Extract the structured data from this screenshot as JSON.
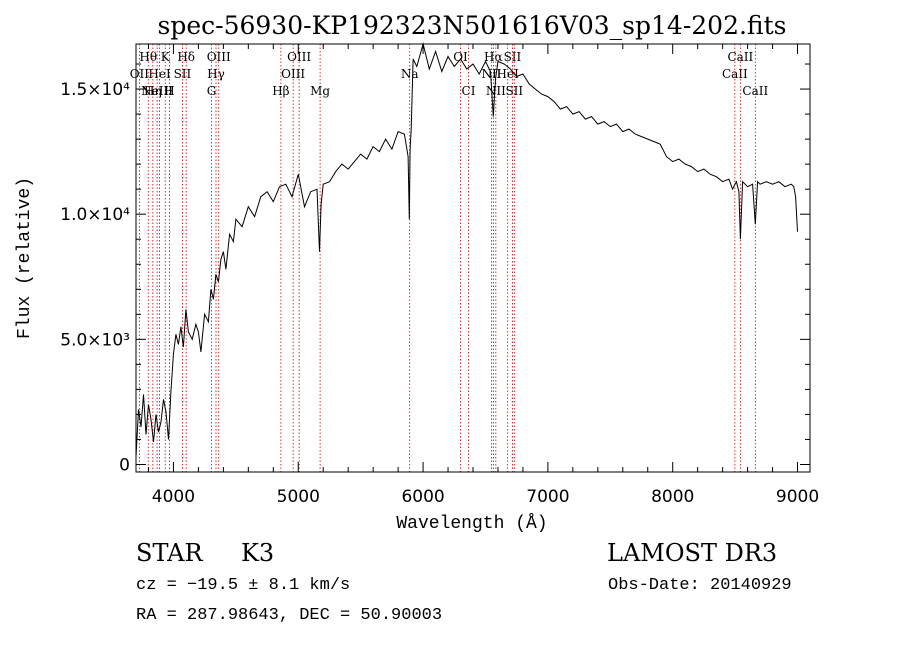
{
  "chart_data": {
    "type": "line",
    "title": "spec-56930-KP192323N501616V03_sp14-202.fits",
    "xlabel": "Wavelength (Å)",
    "ylabel": "Flux (relative)",
    "xlim": [
      3700,
      9100
    ],
    "ylim": [
      -300,
      16800
    ],
    "x_ticks": [
      {
        "value": 4000,
        "label": "4000"
      },
      {
        "value": 5000,
        "label": "5000"
      },
      {
        "value": 6000,
        "label": "6000"
      },
      {
        "value": 7000,
        "label": "7000"
      },
      {
        "value": 8000,
        "label": "8000"
      },
      {
        "value": 9000,
        "label": "9000"
      }
    ],
    "y_ticks": [
      {
        "value": 0,
        "label": "0"
      },
      {
        "value": 5000,
        "label": "5.0×10³"
      },
      {
        "value": 10000,
        "label": "1.0×10⁴"
      },
      {
        "value": 15000,
        "label": "1.5×10⁴"
      }
    ],
    "series": [
      {
        "name": "spectrum",
        "x": [
          3700,
          3720,
          3740,
          3760,
          3780,
          3800,
          3820,
          3840,
          3860,
          3880,
          3900,
          3920,
          3940,
          3960,
          3980,
          4000,
          4020,
          4040,
          4060,
          4080,
          4100,
          4120,
          4150,
          4180,
          4200,
          4220,
          4250,
          4280,
          4300,
          4320,
          4340,
          4360,
          4380,
          4400,
          4420,
          4450,
          4480,
          4500,
          4550,
          4600,
          4650,
          4700,
          4750,
          4800,
          4850,
          4900,
          4950,
          5000,
          5050,
          5100,
          5150,
          5170,
          5183,
          5200,
          5250,
          5300,
          5350,
          5400,
          5450,
          5500,
          5550,
          5600,
          5650,
          5700,
          5750,
          5800,
          5850,
          5880,
          5890,
          5896,
          5905,
          5920,
          5950,
          6000,
          6050,
          6100,
          6150,
          6200,
          6250,
          6300,
          6350,
          6400,
          6450,
          6500,
          6540,
          6563,
          6580,
          6600,
          6650,
          6700,
          6750,
          6800,
          6850,
          6900,
          6950,
          7000,
          7050,
          7100,
          7150,
          7200,
          7250,
          7300,
          7350,
          7400,
          7450,
          7500,
          7550,
          7600,
          7650,
          7700,
          7750,
          7800,
          7850,
          7900,
          7950,
          8000,
          8050,
          8100,
          8150,
          8200,
          8250,
          8300,
          8350,
          8400,
          8450,
          8480,
          8498,
          8510,
          8530,
          8542,
          8560,
          8600,
          8640,
          8662,
          8680,
          8700,
          8750,
          8800,
          8850,
          8900,
          8950,
          8970,
          8985,
          9000
        ],
        "y": [
          300,
          2200,
          1500,
          2800,
          1200,
          2400,
          1800,
          900,
          2000,
          1300,
          1700,
          2600,
          2100,
          1000,
          2900,
          4400,
          5200,
          4800,
          5500,
          4700,
          6200,
          5300,
          5000,
          5600,
          5300,
          4500,
          6000,
          5700,
          7000,
          6600,
          7600,
          7300,
          8200,
          8500,
          7800,
          9200,
          8900,
          9800,
          9500,
          10300,
          9900,
          10700,
          10900,
          10500,
          11100,
          11200,
          10700,
          11600,
          10300,
          10900,
          11000,
          8500,
          10400,
          11200,
          11300,
          11700,
          12000,
          11800,
          12100,
          12400,
          12200,
          12700,
          12500,
          13000,
          12600,
          13300,
          13200,
          12300,
          9800,
          12600,
          13400,
          16200,
          15900,
          16800,
          15800,
          16500,
          15700,
          16300,
          15900,
          16200,
          15800,
          16000,
          15600,
          16100,
          15700,
          13900,
          15400,
          16100,
          16000,
          15800,
          15500,
          15600,
          15200,
          15000,
          14800,
          14700,
          14500,
          14200,
          14300,
          14000,
          14100,
          13800,
          13900,
          13600,
          13700,
          13500,
          13600,
          13300,
          13400,
          13200,
          13100,
          13000,
          12900,
          12800,
          12300,
          12100,
          12200,
          12000,
          11900,
          11700,
          11800,
          11600,
          11500,
          11300,
          11400,
          11000,
          11200,
          11300,
          10900,
          9000,
          11300,
          11100,
          11200,
          9600,
          11300,
          11200,
          11300,
          11200,
          11300,
          11100,
          11200,
          11100,
          10700,
          9300
        ]
      }
    ],
    "line_markers": [
      {
        "wavelength": 3727,
        "label": "OII",
        "row": 1
      },
      {
        "wavelength": 3798,
        "label": "Hθ",
        "row": 0
      },
      {
        "wavelength": 3835,
        "label": "Hη",
        "row": 2
      },
      {
        "wavelength": 3869,
        "label": "NeIII",
        "row": 2
      },
      {
        "wavelength": 3889,
        "label": "HeI",
        "row": 1
      },
      {
        "wavelength": 3934,
        "label": "K",
        "row": 0
      },
      {
        "wavelength": 3968,
        "label": "H",
        "row": 2
      },
      {
        "wavelength": 4072,
        "label": "SII",
        "row": 1
      },
      {
        "wavelength": 4102,
        "label": "Hδ",
        "row": 0
      },
      {
        "wavelength": 4305,
        "label": "G",
        "row": 2
      },
      {
        "wavelength": 4341,
        "label": "Hγ",
        "row": 1
      },
      {
        "wavelength": 4363,
        "label": "OIII",
        "row": 0
      },
      {
        "wavelength": 4861,
        "label": "Hβ",
        "row": 2
      },
      {
        "wavelength": 4959,
        "label": "OIII",
        "row": 1
      },
      {
        "wavelength": 5007,
        "label": "OIII",
        "row": 0
      },
      {
        "wavelength": 5175,
        "label": "Mg",
        "row": 2
      },
      {
        "wavelength": 5893,
        "label": "Na",
        "row": 1
      },
      {
        "wavelength": 6300,
        "label": "OI",
        "row": 0
      },
      {
        "wavelength": 6364,
        "label": "CI",
        "row": 2
      },
      {
        "wavelength": 6548,
        "label": "NII",
        "row": 1
      },
      {
        "wavelength": 6563,
        "label": "Hα",
        "row": 0
      },
      {
        "wavelength": 6583,
        "label": "NII",
        "row": 2
      },
      {
        "wavelength": 6678,
        "label": "HeI",
        "row": 1
      },
      {
        "wavelength": 6716,
        "label": "SII",
        "row": 0
      },
      {
        "wavelength": 6731,
        "label": "SII",
        "row": 2
      },
      {
        "wavelength": 8498,
        "label": "CaII",
        "row": 1
      },
      {
        "wavelength": 8542,
        "label": "CaII",
        "row": 0
      },
      {
        "wavelength": 8662,
        "label": "CaII",
        "row": 2
      }
    ]
  },
  "info": {
    "class_label": "STAR",
    "subclass": "K3",
    "survey": "LAMOST DR3",
    "redshift_line": "cz = −19.5 ± 8.1 km/s",
    "obs_date": "Obs-Date: 20140929",
    "coords": "RA = 287.98643, DEC =  50.90003"
  },
  "colors": {
    "spectrum": "#000000",
    "marker_line": "#cc0000",
    "axis": "#000000",
    "background": "#ffffff"
  }
}
